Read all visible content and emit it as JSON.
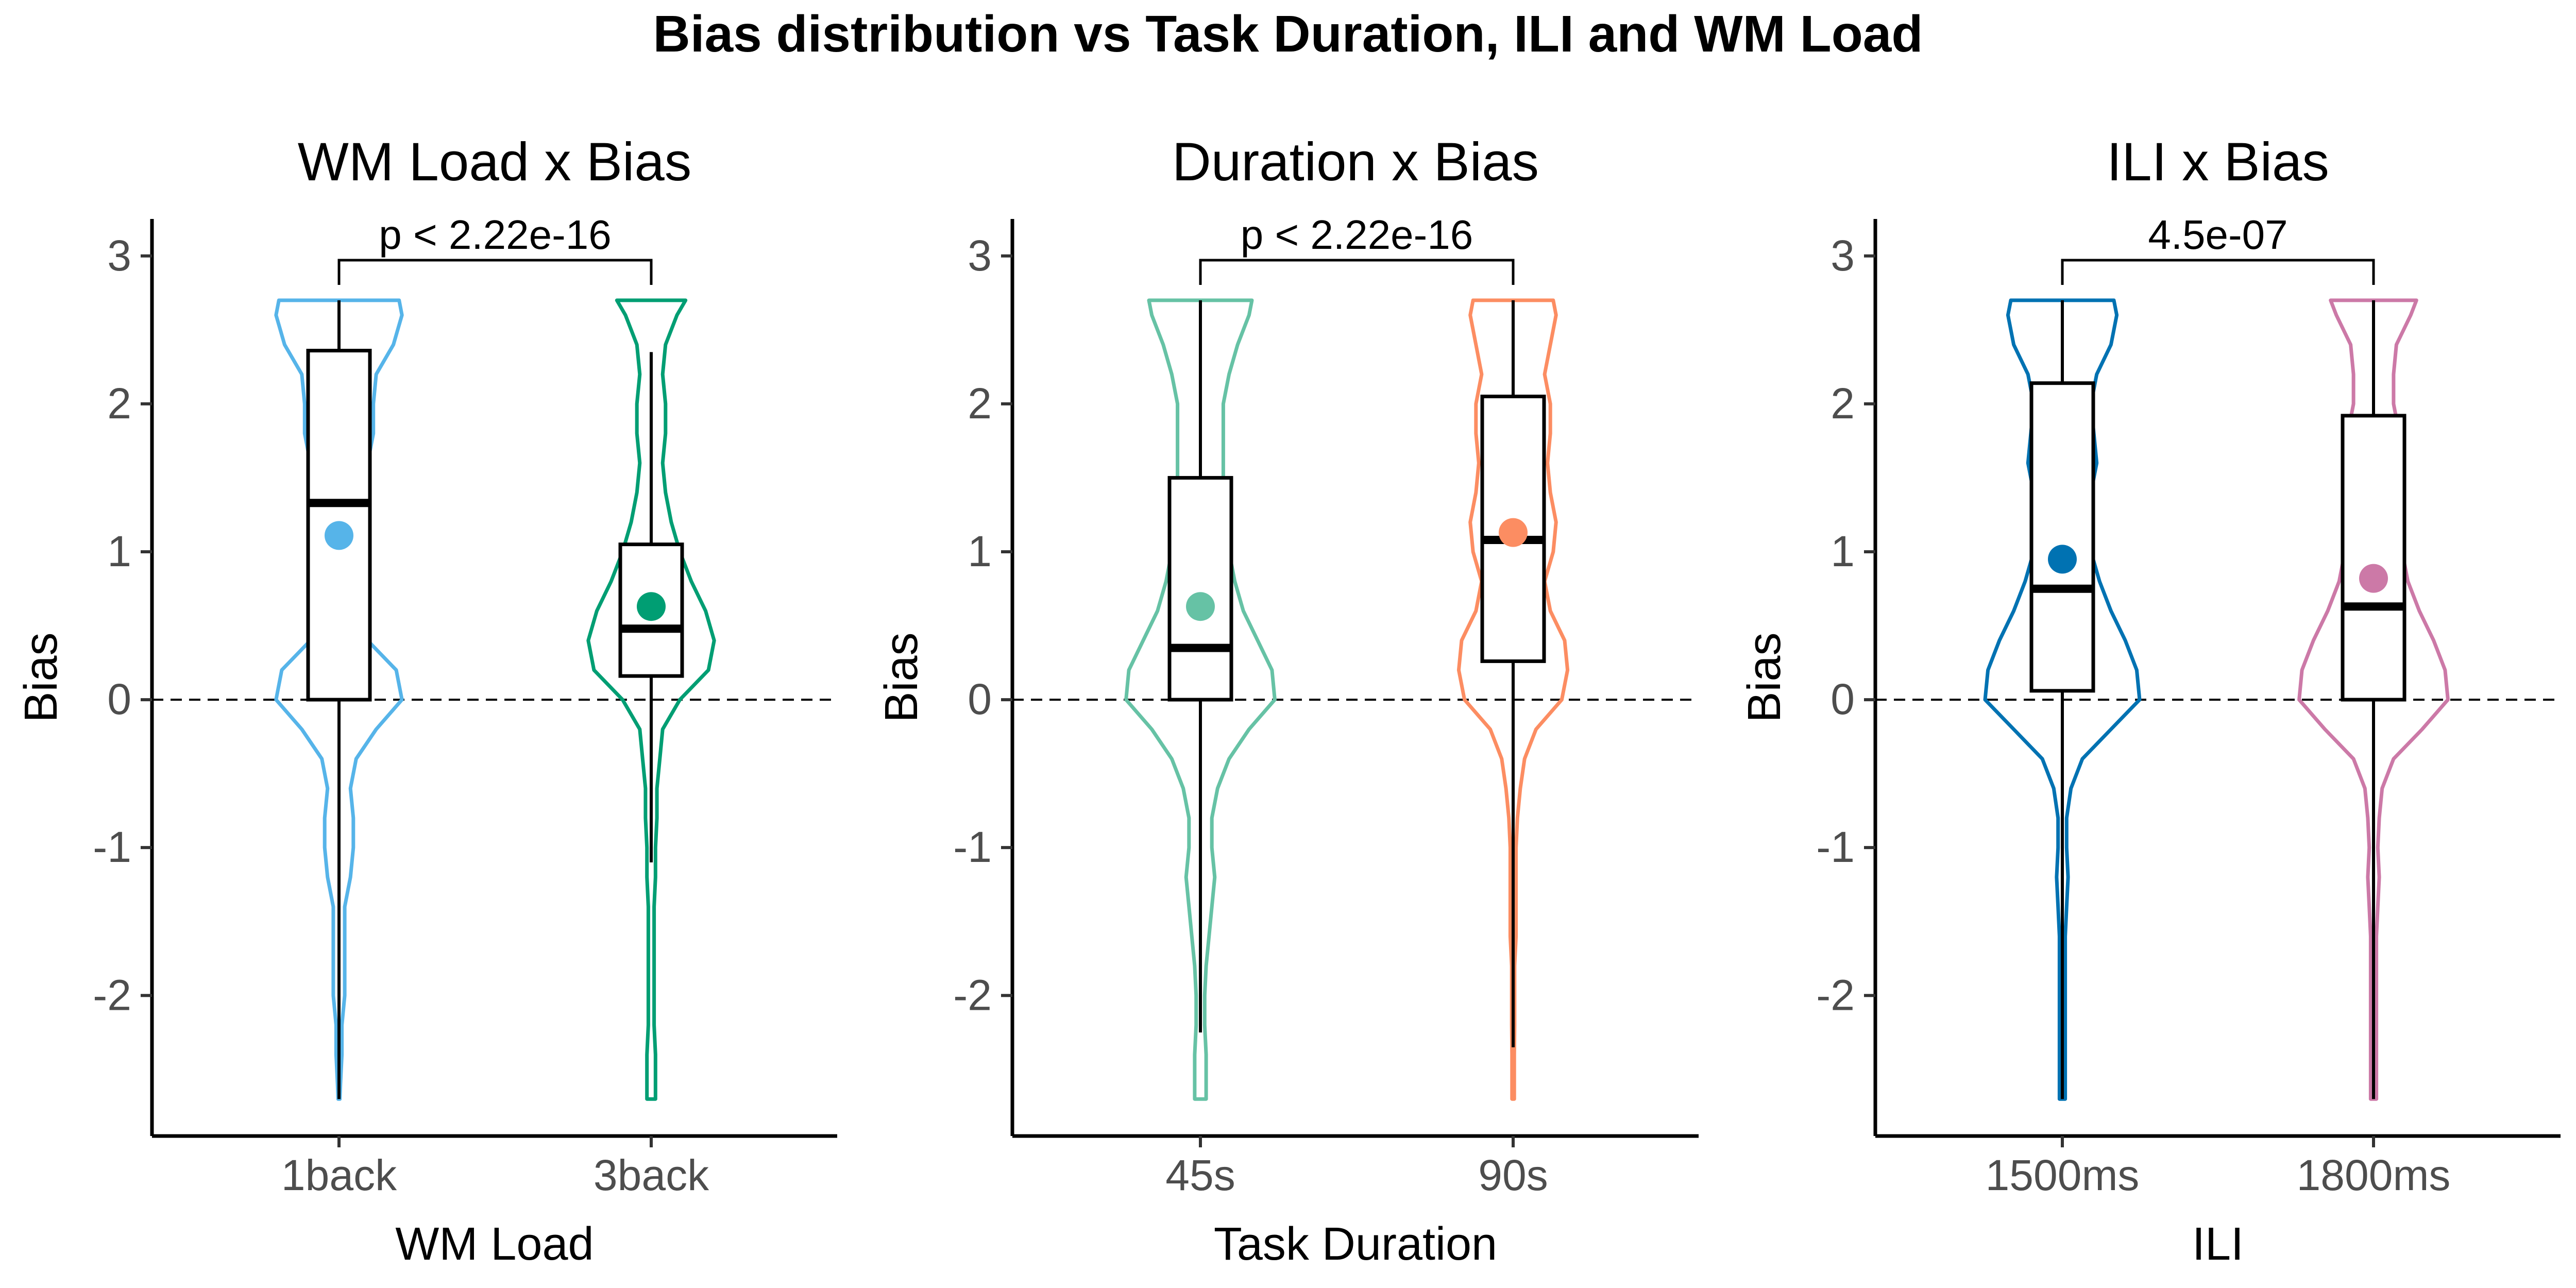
{
  "figure": {
    "title": "Bias distribution vs Task Duration, ILI and WM Load"
  },
  "chart_data": [
    {
      "type": "violin",
      "title": "WM Load x Bias",
      "xlabel": "WM Load",
      "ylabel": "Bias",
      "ylim": [
        -2.95,
        3.25
      ],
      "yticks": [
        3,
        2,
        1,
        0,
        -1,
        -2
      ],
      "ytick_labels": [
        "3",
        "2",
        "1",
        "0",
        "-1",
        "-2"
      ],
      "reference_line": 0,
      "comparison": {
        "label": "p < 2.22e-16",
        "from": 0,
        "to": 1
      },
      "groups": [
        {
          "category": "1back",
          "color": "#56B4E9",
          "mean": 1.11,
          "box": {
            "whisker_low": -2.7,
            "q1": 0.0,
            "median": 1.33,
            "q3": 2.36,
            "whisker_high": 2.7
          },
          "violin": [
            [
              2.7,
              0.21
            ],
            [
              2.6,
              0.22
            ],
            [
              2.4,
              0.19
            ],
            [
              2.2,
              0.13
            ],
            [
              2.0,
              0.12
            ],
            [
              1.8,
              0.12
            ],
            [
              1.6,
              0.1
            ],
            [
              1.4,
              0.08
            ],
            [
              1.2,
              0.06
            ],
            [
              1.0,
              0.05
            ],
            [
              0.8,
              0.05
            ],
            [
              0.6,
              0.06
            ],
            [
              0.4,
              0.1
            ],
            [
              0.2,
              0.2
            ],
            [
              0.0,
              0.22
            ],
            [
              -0.2,
              0.13
            ],
            [
              -0.4,
              0.06
            ],
            [
              -0.6,
              0.04
            ],
            [
              -0.8,
              0.05
            ],
            [
              -1.0,
              0.05
            ],
            [
              -1.2,
              0.04
            ],
            [
              -1.4,
              0.02
            ],
            [
              -1.6,
              0.02
            ],
            [
              -1.8,
              0.02
            ],
            [
              -2.0,
              0.02
            ],
            [
              -2.2,
              0.01
            ],
            [
              -2.4,
              0.01
            ],
            [
              -2.6,
              0.005
            ],
            [
              -2.7,
              0.003
            ]
          ]
        },
        {
          "category": "3back",
          "color": "#009E73",
          "mean": 0.63,
          "box": {
            "whisker_low": -1.1,
            "q1": 0.16,
            "median": 0.48,
            "q3": 1.05,
            "whisker_high": 2.35
          },
          "violin": [
            [
              2.7,
              0.12
            ],
            [
              2.6,
              0.09
            ],
            [
              2.4,
              0.05
            ],
            [
              2.2,
              0.04
            ],
            [
              2.0,
              0.05
            ],
            [
              1.8,
              0.05
            ],
            [
              1.6,
              0.04
            ],
            [
              1.4,
              0.05
            ],
            [
              1.2,
              0.07
            ],
            [
              1.0,
              0.1
            ],
            [
              0.8,
              0.14
            ],
            [
              0.6,
              0.19
            ],
            [
              0.4,
              0.22
            ],
            [
              0.2,
              0.2
            ],
            [
              0.0,
              0.1
            ],
            [
              -0.2,
              0.04
            ],
            [
              -0.4,
              0.03
            ],
            [
              -0.6,
              0.02
            ],
            [
              -0.8,
              0.02
            ],
            [
              -1.0,
              0.015
            ],
            [
              -1.2,
              0.015
            ],
            [
              -1.4,
              0.01
            ],
            [
              -1.6,
              0.01
            ],
            [
              -1.8,
              0.01
            ],
            [
              -2.0,
              0.01
            ],
            [
              -2.2,
              0.01
            ],
            [
              -2.4,
              0.015
            ],
            [
              -2.6,
              0.015
            ],
            [
              -2.7,
              0.015
            ]
          ]
        }
      ]
    },
    {
      "type": "violin",
      "title": "Duration x Bias",
      "xlabel": "Task Duration",
      "ylabel": "Bias",
      "ylim": [
        -2.95,
        3.25
      ],
      "yticks": [
        3,
        2,
        1,
        0,
        -1,
        -2
      ],
      "ytick_labels": [
        "3",
        "2",
        "1",
        "0",
        "-1",
        "-2"
      ],
      "reference_line": 0,
      "comparison": {
        "label": "p < 2.22e-16",
        "from": 0,
        "to": 1
      },
      "groups": [
        {
          "category": "45s",
          "color": "#66C2A5",
          "mean": 0.63,
          "box": {
            "whisker_low": -2.25,
            "q1": 0.0,
            "median": 0.35,
            "q3": 1.5,
            "whisker_high": 2.7
          },
          "violin": [
            [
              2.7,
              0.18
            ],
            [
              2.6,
              0.17
            ],
            [
              2.4,
              0.13
            ],
            [
              2.2,
              0.1
            ],
            [
              2.0,
              0.08
            ],
            [
              1.8,
              0.08
            ],
            [
              1.6,
              0.08
            ],
            [
              1.4,
              0.08
            ],
            [
              1.2,
              0.09
            ],
            [
              1.0,
              0.1
            ],
            [
              0.8,
              0.12
            ],
            [
              0.6,
              0.15
            ],
            [
              0.4,
              0.2
            ],
            [
              0.2,
              0.25
            ],
            [
              0.0,
              0.26
            ],
            [
              -0.2,
              0.17
            ],
            [
              -0.4,
              0.1
            ],
            [
              -0.6,
              0.06
            ],
            [
              -0.8,
              0.04
            ],
            [
              -1.0,
              0.04
            ],
            [
              -1.2,
              0.05
            ],
            [
              -1.4,
              0.04
            ],
            [
              -1.6,
              0.03
            ],
            [
              -1.8,
              0.02
            ],
            [
              -2.0,
              0.015
            ],
            [
              -2.2,
              0.015
            ],
            [
              -2.4,
              0.02
            ],
            [
              -2.6,
              0.02
            ],
            [
              -2.7,
              0.02
            ]
          ]
        },
        {
          "category": "90s",
          "color": "#FC8D62",
          "mean": 1.13,
          "box": {
            "whisker_low": -2.35,
            "q1": 0.26,
            "median": 1.08,
            "q3": 2.05,
            "whisker_high": 2.7
          },
          "violin": [
            [
              2.7,
              0.14
            ],
            [
              2.6,
              0.15
            ],
            [
              2.4,
              0.13
            ],
            [
              2.2,
              0.11
            ],
            [
              2.0,
              0.13
            ],
            [
              1.8,
              0.13
            ],
            [
              1.6,
              0.12
            ],
            [
              1.4,
              0.13
            ],
            [
              1.2,
              0.15
            ],
            [
              1.0,
              0.14
            ],
            [
              0.8,
              0.11
            ],
            [
              0.6,
              0.13
            ],
            [
              0.4,
              0.18
            ],
            [
              0.2,
              0.19
            ],
            [
              0.0,
              0.17
            ],
            [
              -0.2,
              0.08
            ],
            [
              -0.4,
              0.04
            ],
            [
              -0.6,
              0.025
            ],
            [
              -0.8,
              0.015
            ],
            [
              -1.0,
              0.01
            ],
            [
              -1.2,
              0.01
            ],
            [
              -1.4,
              0.01
            ],
            [
              -1.6,
              0.01
            ],
            [
              -1.8,
              0.005
            ],
            [
              -2.0,
              0.005
            ],
            [
              -2.2,
              0.005
            ],
            [
              -2.4,
              0.004
            ],
            [
              -2.6,
              0.004
            ],
            [
              -2.7,
              0.004
            ]
          ]
        }
      ]
    },
    {
      "type": "violin",
      "title": "ILI x Bias",
      "xlabel": "ILI",
      "ylabel": "Bias",
      "ylim": [
        -2.95,
        3.25
      ],
      "yticks": [
        3,
        2,
        1,
        0,
        -1,
        -2
      ],
      "ytick_labels": [
        "3",
        "2",
        "1",
        "0",
        "-1",
        "-2"
      ],
      "reference_line": 0,
      "comparison": {
        "label": "4.5e-07",
        "from": 0,
        "to": 1
      },
      "groups": [
        {
          "category": "1500ms",
          "color": "#0072B2",
          "mean": 0.95,
          "box": {
            "whisker_low": -2.7,
            "q1": 0.06,
            "median": 0.75,
            "q3": 2.14,
            "whisker_high": 2.7
          },
          "violin": [
            [
              2.7,
              0.18
            ],
            [
              2.6,
              0.19
            ],
            [
              2.4,
              0.17
            ],
            [
              2.2,
              0.12
            ],
            [
              2.0,
              0.1
            ],
            [
              1.8,
              0.11
            ],
            [
              1.6,
              0.12
            ],
            [
              1.4,
              0.1
            ],
            [
              1.2,
              0.09
            ],
            [
              1.0,
              0.1
            ],
            [
              0.8,
              0.13
            ],
            [
              0.6,
              0.17
            ],
            [
              0.4,
              0.22
            ],
            [
              0.2,
              0.26
            ],
            [
              0.0,
              0.27
            ],
            [
              -0.2,
              0.17
            ],
            [
              -0.4,
              0.07
            ],
            [
              -0.6,
              0.03
            ],
            [
              -0.8,
              0.015
            ],
            [
              -1.0,
              0.015
            ],
            [
              -1.2,
              0.02
            ],
            [
              -1.4,
              0.015
            ],
            [
              -1.6,
              0.01
            ],
            [
              -1.8,
              0.01
            ],
            [
              -2.0,
              0.01
            ],
            [
              -2.2,
              0.01
            ],
            [
              -2.4,
              0.01
            ],
            [
              -2.6,
              0.01
            ],
            [
              -2.7,
              0.01
            ]
          ]
        },
        {
          "category": "1800ms",
          "color": "#CC79A7",
          "mean": 0.82,
          "box": {
            "whisker_low": -2.7,
            "q1": 0.0,
            "median": 0.63,
            "q3": 1.92,
            "whisker_high": 2.7
          },
          "violin": [
            [
              2.7,
              0.15
            ],
            [
              2.6,
              0.13
            ],
            [
              2.4,
              0.08
            ],
            [
              2.2,
              0.07
            ],
            [
              2.0,
              0.07
            ],
            [
              1.8,
              0.09
            ],
            [
              1.6,
              0.1
            ],
            [
              1.4,
              0.1
            ],
            [
              1.2,
              0.1
            ],
            [
              1.0,
              0.1
            ],
            [
              0.8,
              0.12
            ],
            [
              0.6,
              0.16
            ],
            [
              0.4,
              0.21
            ],
            [
              0.2,
              0.25
            ],
            [
              0.0,
              0.26
            ],
            [
              -0.2,
              0.17
            ],
            [
              -0.4,
              0.07
            ],
            [
              -0.6,
              0.03
            ],
            [
              -0.8,
              0.02
            ],
            [
              -1.0,
              0.015
            ],
            [
              -1.2,
              0.02
            ],
            [
              -1.4,
              0.015
            ],
            [
              -1.6,
              0.01
            ],
            [
              -1.8,
              0.01
            ],
            [
              -2.0,
              0.01
            ],
            [
              -2.2,
              0.01
            ],
            [
              -2.4,
              0.01
            ],
            [
              -2.6,
              0.01
            ],
            [
              -2.7,
              0.01
            ]
          ]
        }
      ]
    }
  ]
}
